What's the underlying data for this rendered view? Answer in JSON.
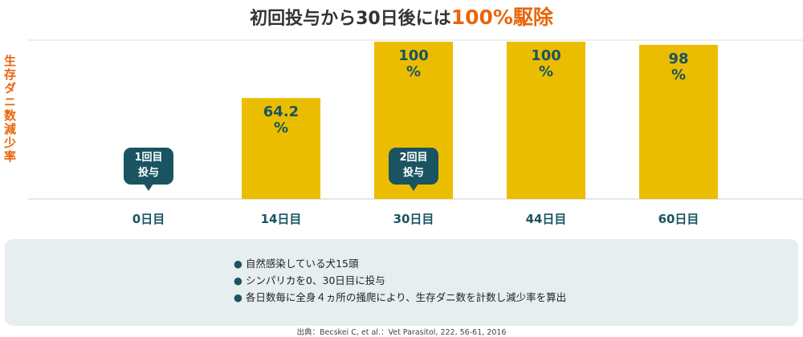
{
  "chart_data": {
    "type": "bar",
    "title": "初回投与から30日後には",
    "title_highlight": "100%駆除",
    "y_label": "生存ダニ数減少率",
    "categories": [
      "0日目",
      "14日目",
      "30日目",
      "44日目",
      "60日目"
    ],
    "values": [
      0,
      64.2,
      100,
      100,
      98
    ],
    "value_labels": [
      null,
      "64.2\n%",
      "100\n%",
      "100\n%",
      "98\n%"
    ],
    "color": "#ebbd00",
    "ylim": [
      0,
      100
    ],
    "annotations": [
      "1回目\n投与",
      "2回目\n投与"
    ],
    "notes": [
      "自然感染している犬15頭",
      "シンパリカを0、30日目に投与",
      "各日数毎に全身４ヵ所の掻爬により、生存ダニ数を計数し減少率を算出"
    ],
    "source": "出典：Becskei C, et al.：Vet Parasitol, 222, 56-61, 2016"
  }
}
